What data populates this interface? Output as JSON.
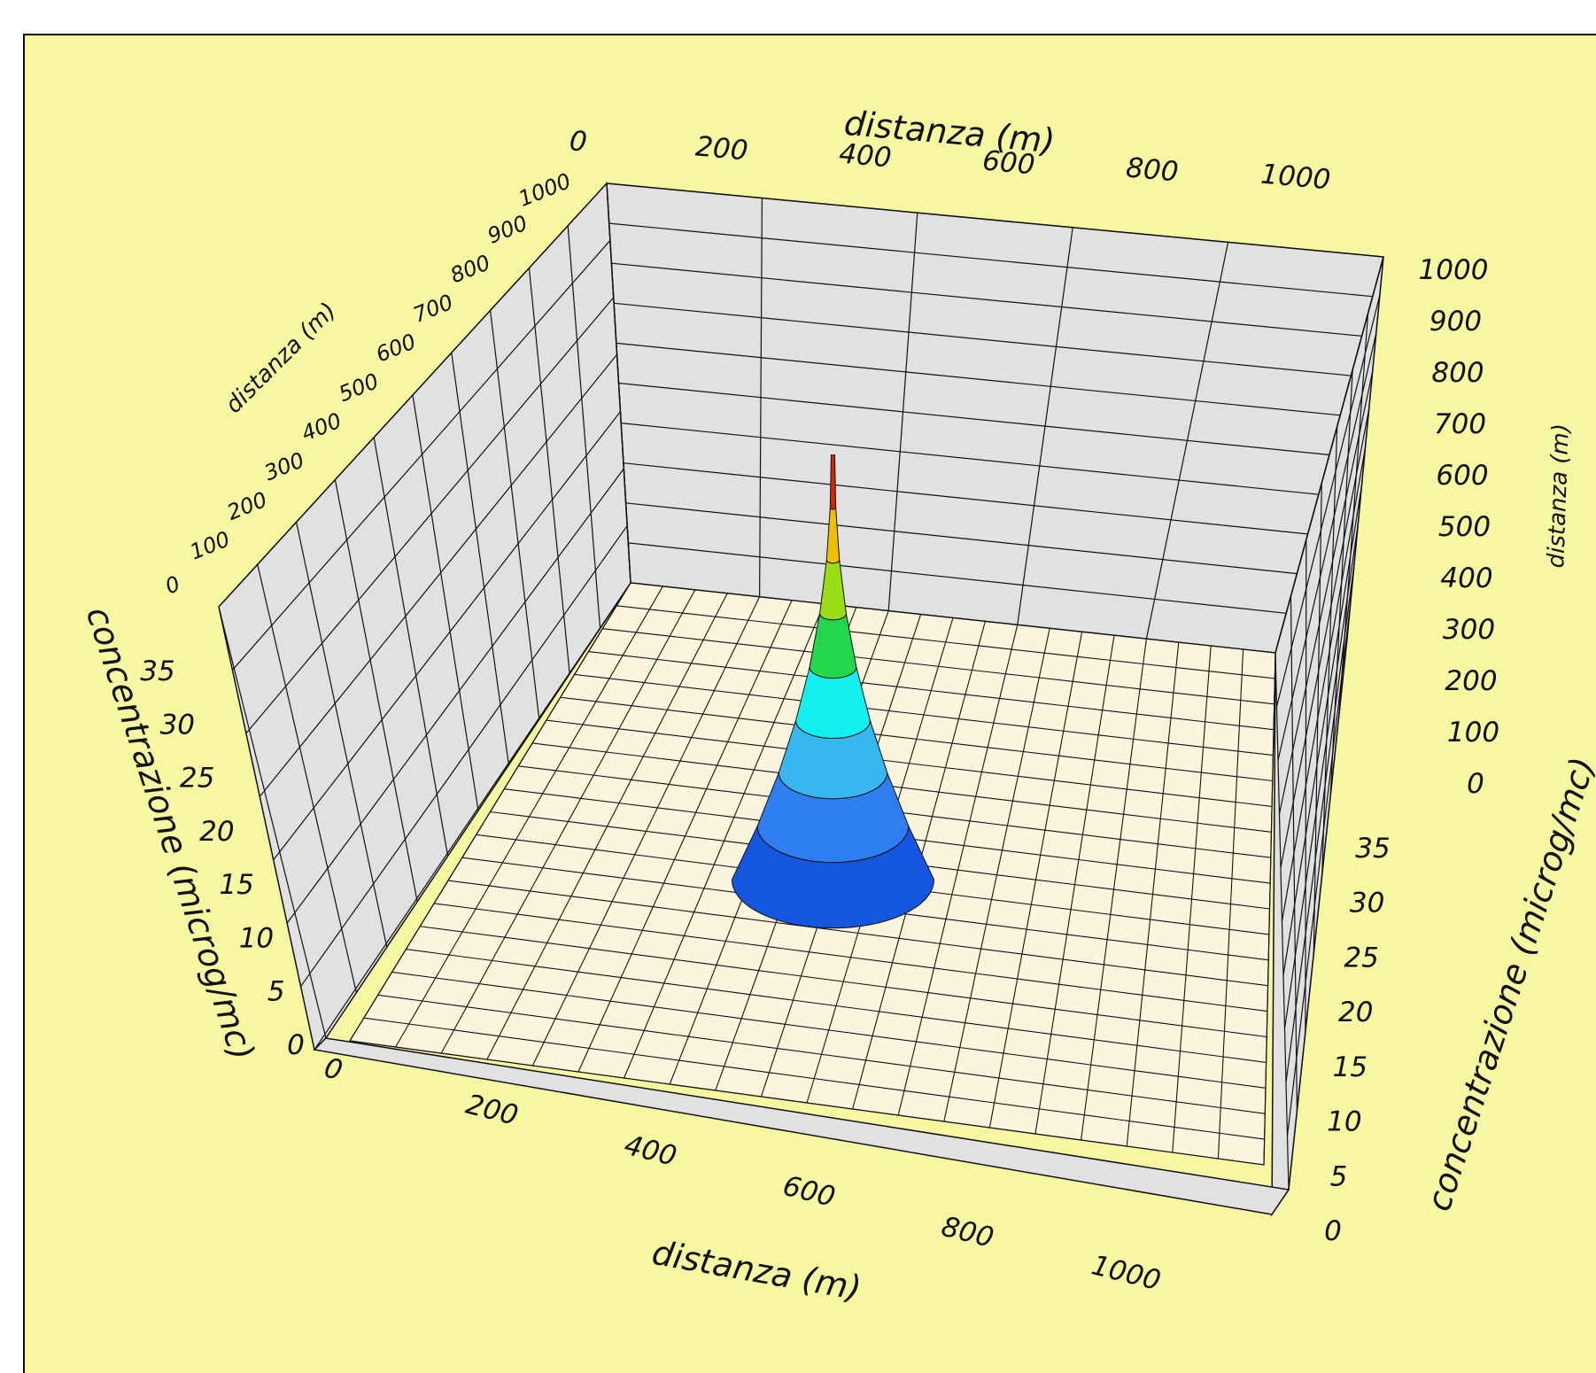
{
  "colors": {
    "background": "#f7f7a2",
    "wall": "#dfe1e2",
    "floor": "#fbf5dd",
    "grid_line": "#111111"
  },
  "chart_data": {
    "type": "surface3d",
    "titles": {
      "x_axis_bottom": "distanza (m)",
      "x_axis_top": "distanza (m)",
      "y_axis_left": "distanza (m)",
      "y_axis_right": "distanza (m)",
      "z_axis_left": "concentrazione (microg/mc)",
      "z_axis_right": "concentrazione (microg/mc)"
    },
    "x_ticks": [
      "0",
      "200",
      "400",
      "600",
      "800",
      "1000"
    ],
    "y_ticks": [
      "0",
      "100",
      "200",
      "300",
      "400",
      "500",
      "600",
      "700",
      "800",
      "900",
      "1000"
    ],
    "z_ticks": [
      "0",
      "5",
      "10",
      "15",
      "20",
      "25",
      "30",
      "35"
    ],
    "xlim": [
      0,
      1000
    ],
    "ylim": [
      0,
      1000
    ],
    "zlim": [
      0,
      35
    ],
    "grid": true,
    "surface": {
      "peak_x": 450,
      "peak_y": 450,
      "peak_value": 35,
      "plume_radius": 80,
      "color_levels": [
        {
          "from": 0,
          "to": 4.4,
          "color": "#1456e0"
        },
        {
          "from": 4.4,
          "to": 8.8,
          "color": "#2e7ef2"
        },
        {
          "from": 8.8,
          "to": 13.1,
          "color": "#36b7f0"
        },
        {
          "from": 13.1,
          "to": 17.5,
          "color": "#14f0f0"
        },
        {
          "from": 17.5,
          "to": 21.9,
          "color": "#22d84a"
        },
        {
          "from": 21.9,
          "to": 26.3,
          "color": "#9adf16"
        },
        {
          "from": 26.3,
          "to": 30.6,
          "color": "#f0c000"
        },
        {
          "from": 30.6,
          "to": 35,
          "color": "#d42800"
        }
      ]
    }
  }
}
